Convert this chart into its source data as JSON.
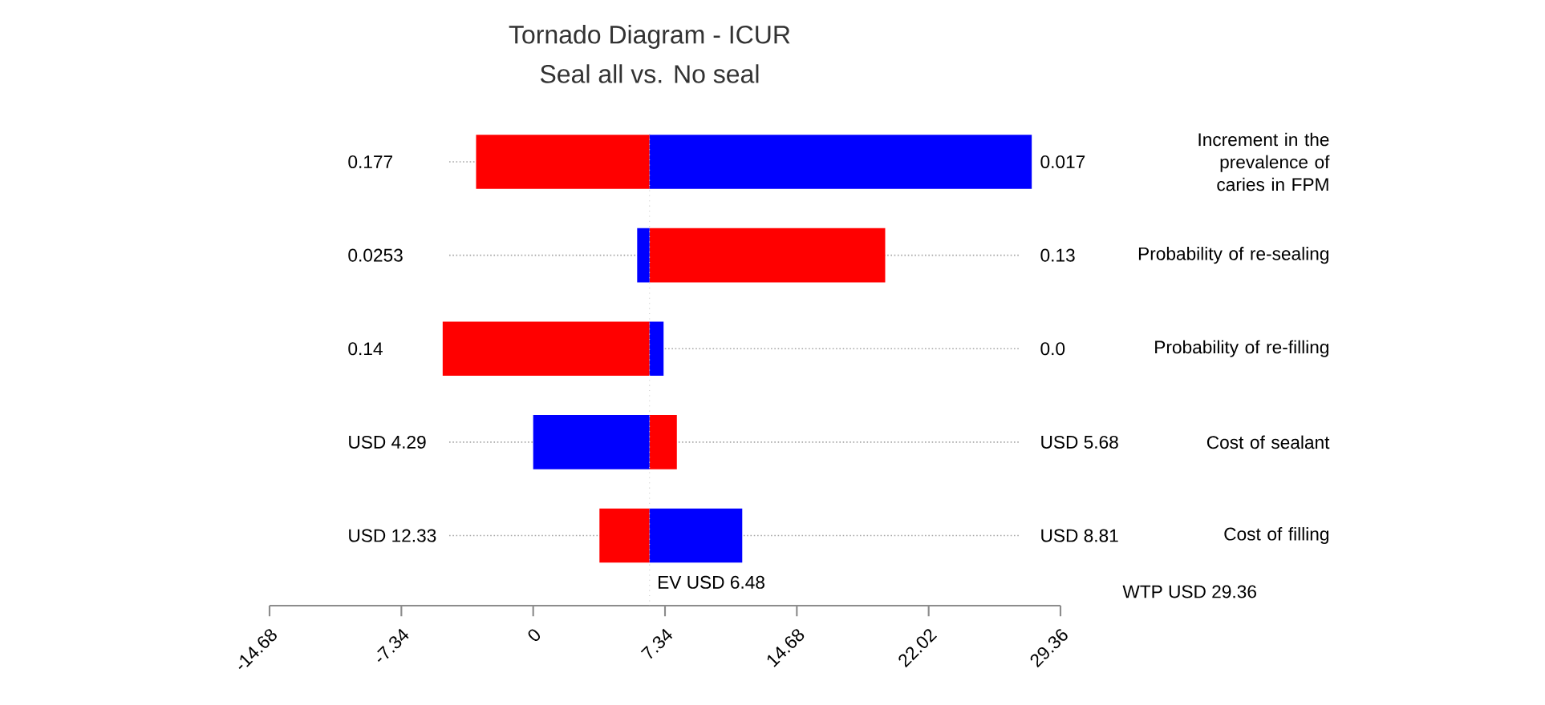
{
  "chart_data": {
    "type": "bar",
    "orientation": "horizontal",
    "title": "Tornado Diagram - ICUR",
    "subtitle": "Seal all vs. No seal",
    "categories": [
      "Increment in the prevalence of caries in FPM",
      "Probability of re-sealing",
      "Probability of re-filling",
      "Cost  of sealant",
      "Cost of filling"
    ],
    "series": [
      {
        "color": "#ff0000",
        "base": [
          -3.18,
          6.48,
          -5.04,
          6.48,
          3.69
        ],
        "values": [
          9.66,
          13.12,
          11.52,
          1.52,
          2.79
        ]
      },
      {
        "color": "#0000ff",
        "base": [
          6.48,
          5.79,
          6.48,
          0.0,
          6.48
        ],
        "values": [
          21.28,
          0.69,
          0.78,
          6.48,
          5.16
        ]
      }
    ],
    "xlim": [
      -14.68,
      29.36
    ],
    "xticks": [
      -14.68,
      -7.34,
      0,
      7.34,
      14.68,
      22.02,
      29.36
    ],
    "ref_lines": [
      {
        "axis": "x",
        "value": 6.48,
        "label": "EV  USD 6.48",
        "color": "#c8c8c8",
        "line_style": "dotted"
      }
    ],
    "annotations": [
      "0.177",
      "0.0253",
      "0.14",
      "USD 4.29",
      "USD 12.33",
      "0.017",
      "0.13",
      "0.0",
      "USD 5.68",
      "USD 8.81",
      "WTP    USD 29.36"
    ],
    "grid": "y"
  }
}
